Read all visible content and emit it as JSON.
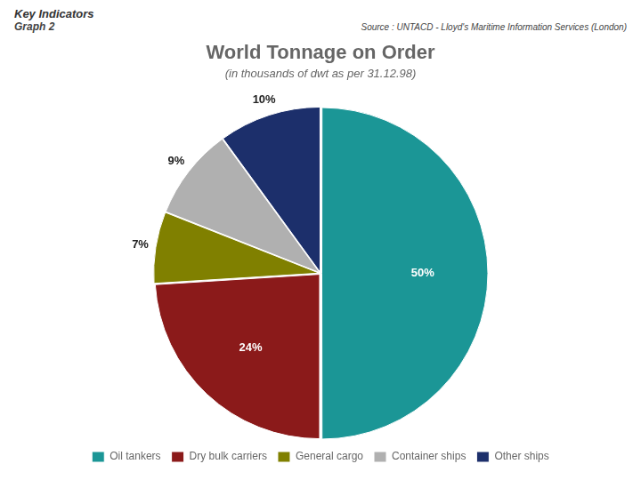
{
  "chart_data": {
    "type": "pie",
    "title": "World Tonnage on Order",
    "subtitle": "(in thousands of dwt as per 31.12.98)",
    "annotations": [
      "Key Indicators",
      "Graph 2",
      "Source : UNTACD - Lloyd's Maritime Information Services (London)"
    ],
    "categories": [
      "Oil tankers",
      "Dry bulk carriers",
      "General cargo",
      "Container ships",
      "Other ships"
    ],
    "values": [
      50,
      24,
      7,
      9,
      10
    ],
    "value_labels": [
      "50%",
      "24%",
      "7%",
      "9%",
      "10%"
    ],
    "colors": [
      "#1B9696",
      "#8B1A1A",
      "#808000",
      "#B0B0B0",
      "#1C2F6B"
    ],
    "data_labels": true,
    "legend": "bottom"
  }
}
